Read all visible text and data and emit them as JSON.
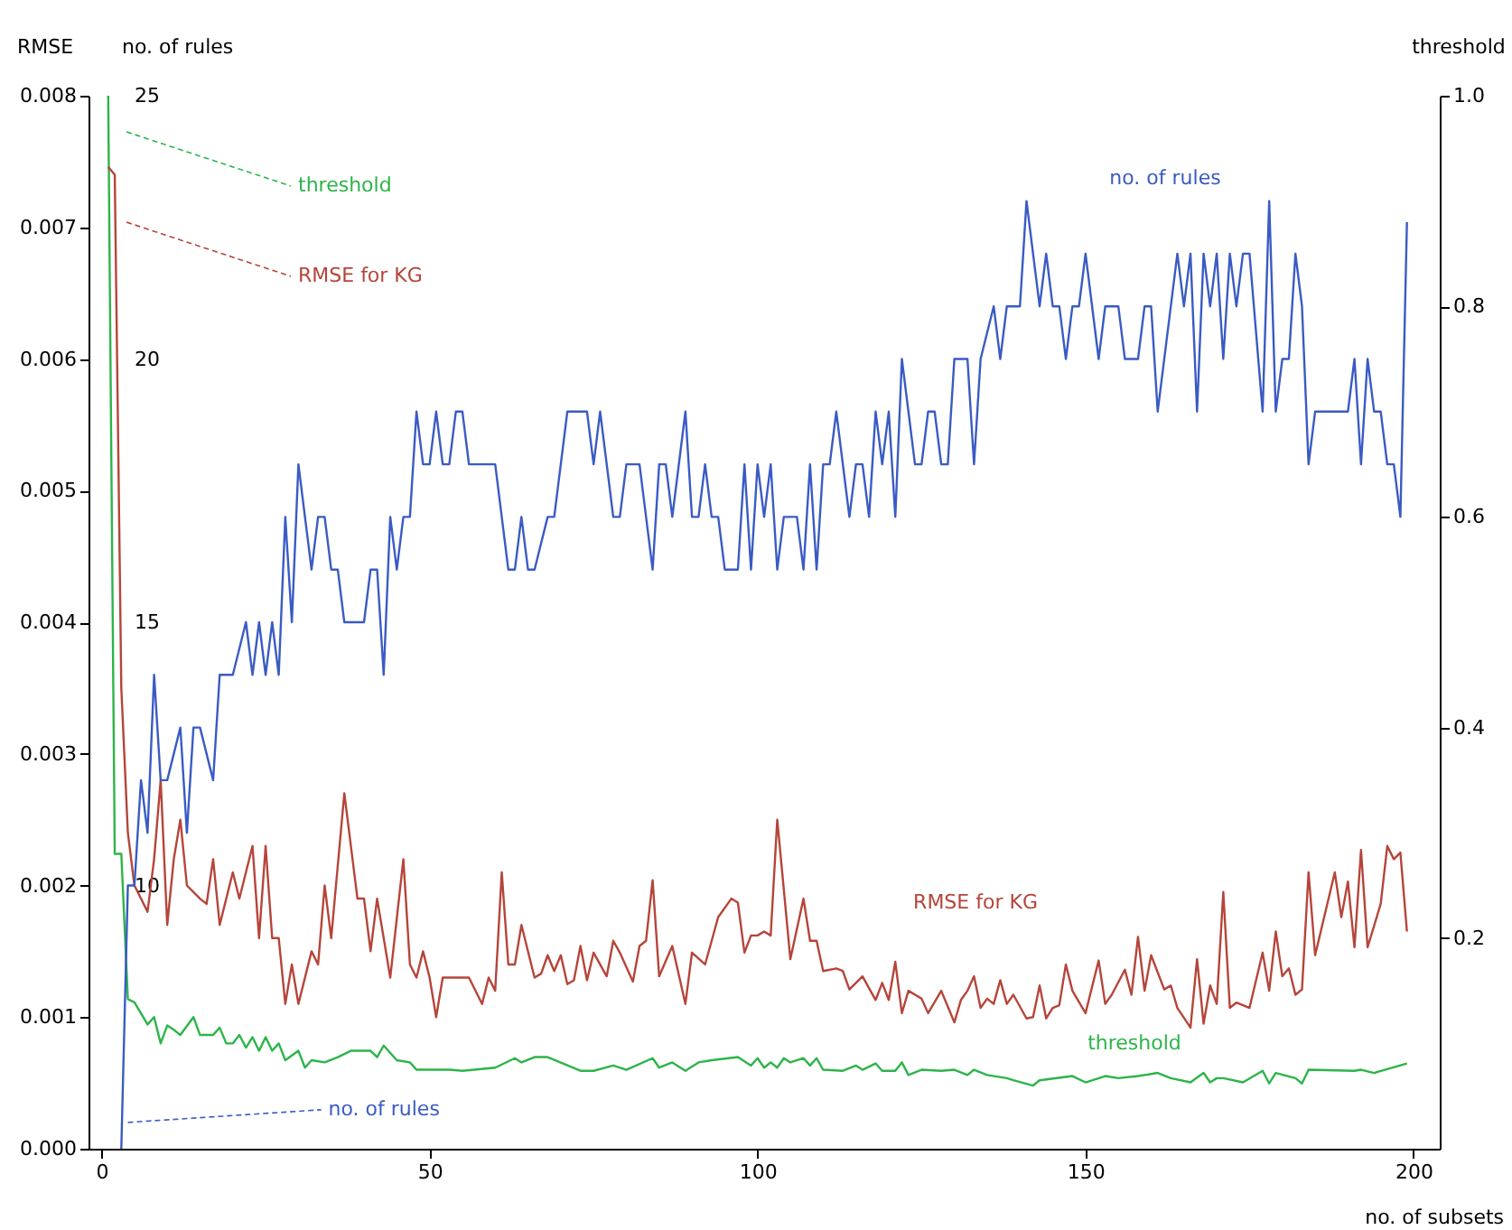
{
  "chart_data": {
    "type": "line",
    "xlabel": "no. of subsets",
    "ylabel": "RMSE",
    "y2label": "no. of rules",
    "y3label": "threshold",
    "xlim": [
      -2,
      204
    ],
    "xticks": [
      0,
      50,
      100,
      150,
      200
    ],
    "ylim": [
      0,
      0.008
    ],
    "yticks": [
      {
        "value": 0,
        "label": "0.000"
      },
      0.001,
      0.002,
      0.003,
      0.004,
      0.005,
      0.006,
      0.007,
      0.008
    ],
    "y2lim": [
      5,
      25
    ],
    "y2ticks": [
      10,
      15,
      20,
      25
    ],
    "y3lim": [
      0,
      1
    ],
    "y3ticks": [
      0.2,
      0.4,
      0.6,
      0.8,
      {
        "value": 1,
        "label": "1.0"
      }
    ],
    "line_style": "solid",
    "series": [
      {
        "name": "threshold",
        "axis": "y3",
        "color": "#2db44a",
        "x": [
          1,
          2,
          3,
          4,
          5,
          7,
          8,
          9,
          10,
          11,
          12,
          14,
          15,
          17,
          18,
          19,
          20,
          21,
          22,
          23,
          24,
          25,
          26,
          27,
          28,
          30,
          31,
          32,
          34,
          36,
          38,
          41,
          42,
          43,
          45,
          47,
          48,
          51,
          53,
          55,
          60,
          63,
          64,
          66,
          68,
          73,
          75,
          78,
          80,
          84,
          85,
          87,
          89,
          91,
          93,
          97,
          99,
          100,
          101,
          102,
          103,
          104,
          105,
          107,
          108,
          109,
          110,
          113,
          115,
          116,
          118,
          119,
          121,
          122,
          123,
          125,
          128,
          130,
          132,
          133,
          135,
          138,
          139,
          142,
          143,
          148,
          150,
          153,
          155,
          158,
          161,
          163,
          166,
          168,
          169,
          170,
          171,
          174,
          177,
          178,
          179,
          182,
          183,
          184,
          191,
          192,
          194,
          199
        ],
        "values": [
          1.0,
          0.28,
          0.28,
          0.142,
          0.139,
          0.118,
          0.125,
          0.1,
          0.117,
          0.113,
          0.108,
          0.125,
          0.108,
          0.108,
          0.115,
          0.1,
          0.1,
          0.108,
          0.096,
          0.106,
          0.093,
          0.106,
          0.093,
          0.1,
          0.084,
          0.093,
          0.077,
          0.084,
          0.082,
          0.087,
          0.093,
          0.093,
          0.087,
          0.098,
          0.084,
          0.082,
          0.075,
          0.075,
          0.075,
          0.074,
          0.077,
          0.086,
          0.082,
          0.087,
          0.087,
          0.074,
          0.074,
          0.079,
          0.075,
          0.086,
          0.077,
          0.082,
          0.074,
          0.082,
          0.084,
          0.087,
          0.079,
          0.086,
          0.077,
          0.082,
          0.077,
          0.086,
          0.082,
          0.086,
          0.079,
          0.086,
          0.075,
          0.074,
          0.079,
          0.075,
          0.081,
          0.074,
          0.074,
          0.082,
          0.07,
          0.075,
          0.074,
          0.075,
          0.07,
          0.075,
          0.07,
          0.067,
          0.065,
          0.06,
          0.065,
          0.069,
          0.063,
          0.069,
          0.067,
          0.069,
          0.072,
          0.067,
          0.063,
          0.072,
          0.063,
          0.067,
          0.067,
          0.063,
          0.074,
          0.062,
          0.072,
          0.067,
          0.062,
          0.075,
          0.074,
          0.075,
          0.072,
          0.081
        ]
      },
      {
        "name": "RMSE for KG",
        "color": "#b5453a",
        "x": [
          1,
          2,
          3,
          4,
          5,
          6,
          7,
          8,
          9,
          10,
          11,
          12,
          13,
          15,
          16,
          17,
          18,
          20,
          21,
          23,
          24,
          25,
          26,
          27,
          28,
          29,
          30,
          32,
          33,
          34,
          35,
          37,
          39,
          40,
          41,
          42,
          44,
          46,
          47,
          48,
          49,
          50,
          51,
          52,
          53,
          56,
          58,
          59,
          60,
          61,
          62,
          63,
          64,
          66,
          67,
          68,
          69,
          70,
          71,
          72,
          73,
          74,
          75,
          77,
          78,
          79,
          81,
          82,
          83,
          84,
          85,
          87,
          89,
          90,
          92,
          94,
          96,
          97,
          98,
          99,
          100,
          101,
          102,
          103,
          105,
          107,
          108,
          109,
          110,
          112,
          113,
          114,
          116,
          118,
          119,
          120,
          121,
          122,
          123,
          125,
          126,
          128,
          130,
          131,
          132,
          133,
          134,
          135,
          136,
          137,
          138,
          139,
          141,
          142,
          143,
          144,
          145,
          146,
          147,
          148,
          150,
          152,
          153,
          154,
          156,
          157,
          158,
          159,
          160,
          162,
          163,
          164,
          166,
          167,
          168,
          169,
          170,
          171,
          172,
          173,
          175,
          177,
          178,
          179,
          180,
          181,
          182,
          183,
          184,
          185,
          188,
          189,
          190,
          191,
          192,
          193,
          195,
          196,
          197,
          198,
          199
        ],
        "values": [
          0.00746,
          0.0074,
          0.0035,
          0.0024,
          0.002,
          0.0019,
          0.0018,
          0.0022,
          0.0028,
          0.0017,
          0.0022,
          0.0025,
          0.002,
          0.0019,
          0.00186,
          0.0022,
          0.0017,
          0.0021,
          0.0019,
          0.0023,
          0.0016,
          0.0023,
          0.0016,
          0.0016,
          0.0011,
          0.0014,
          0.0011,
          0.0015,
          0.0014,
          0.002,
          0.0016,
          0.0027,
          0.0019,
          0.0019,
          0.0015,
          0.0019,
          0.0013,
          0.0022,
          0.0014,
          0.0013,
          0.0015,
          0.0013,
          0.001,
          0.0013,
          0.0013,
          0.0013,
          0.0011,
          0.0013,
          0.0012,
          0.0021,
          0.0014,
          0.0014,
          0.0017,
          0.0013,
          0.00133,
          0.00147,
          0.00135,
          0.00147,
          0.00125,
          0.00128,
          0.00154,
          0.00128,
          0.00149,
          0.00131,
          0.00158,
          0.00149,
          0.00127,
          0.00154,
          0.00158,
          0.00204,
          0.00131,
          0.00154,
          0.0011,
          0.00149,
          0.0014,
          0.00176,
          0.0019,
          0.00187,
          0.00149,
          0.00162,
          0.00162,
          0.00165,
          0.00162,
          0.0025,
          0.00144,
          0.0019,
          0.00158,
          0.00158,
          0.00135,
          0.00137,
          0.00135,
          0.00121,
          0.00131,
          0.00113,
          0.00126,
          0.00113,
          0.00142,
          0.00103,
          0.0012,
          0.00114,
          0.00103,
          0.0012,
          0.00096,
          0.00113,
          0.0012,
          0.00131,
          0.00107,
          0.00114,
          0.0011,
          0.00128,
          0.0011,
          0.00117,
          0.00099,
          0.001,
          0.00124,
          0.00099,
          0.00107,
          0.00109,
          0.0014,
          0.0012,
          0.00103,
          0.00143,
          0.0011,
          0.00117,
          0.00136,
          0.00117,
          0.00161,
          0.0012,
          0.00147,
          0.00121,
          0.00124,
          0.00107,
          0.00092,
          0.00144,
          0.00095,
          0.00124,
          0.0011,
          0.00195,
          0.00107,
          0.00111,
          0.00107,
          0.00149,
          0.0012,
          0.00165,
          0.00131,
          0.00137,
          0.00117,
          0.00121,
          0.0021,
          0.00147,
          0.0021,
          0.00176,
          0.00203,
          0.00153,
          0.00227,
          0.00153,
          0.00186,
          0.0023,
          0.0022,
          0.00225,
          0.00165
        ]
      },
      {
        "name": "no. of rules",
        "axis": "y2",
        "color": "#3a5bc4",
        "x": [
          3,
          4,
          5,
          6,
          7,
          8,
          9,
          10,
          12,
          13,
          14,
          15,
          17,
          18,
          20,
          22,
          23,
          24,
          25,
          26,
          27,
          28,
          29,
          30,
          32,
          33,
          34,
          35,
          36,
          37,
          40,
          41,
          42,
          43,
          44,
          45,
          46,
          47,
          48,
          49,
          50,
          51,
          52,
          53,
          54,
          55,
          56,
          60,
          62,
          63,
          64,
          65,
          66,
          68,
          69,
          71,
          74,
          75,
          76,
          78,
          79,
          80,
          82,
          84,
          85,
          86,
          87,
          89,
          90,
          91,
          92,
          93,
          94,
          95,
          97,
          98,
          99,
          100,
          101,
          102,
          103,
          104,
          106,
          107,
          108,
          109,
          110,
          111,
          112,
          114,
          115,
          116,
          117,
          118,
          119,
          120,
          121,
          122,
          124,
          125,
          126,
          127,
          128,
          129,
          130,
          132,
          133,
          134,
          136,
          137,
          138,
          140,
          141,
          143,
          144,
          145,
          146,
          147,
          148,
          149,
          150,
          152,
          153,
          155,
          156,
          158,
          159,
          160,
          161,
          164,
          165,
          166,
          167,
          168,
          169,
          170,
          171,
          172,
          173,
          174,
          175,
          177,
          178,
          179,
          180,
          181,
          182,
          183,
          184,
          185,
          190,
          191,
          192,
          193,
          194,
          195,
          196,
          197,
          198,
          199
        ],
        "values": [
          5,
          10,
          10,
          12,
          11,
          14,
          12,
          12,
          13,
          11,
          13,
          13,
          12,
          14,
          14,
          15,
          14,
          15,
          14,
          15,
          14,
          17,
          15,
          18,
          16,
          17,
          17,
          16,
          16,
          15,
          15,
          16,
          16,
          14,
          17,
          16,
          17,
          17,
          19,
          18,
          18,
          19,
          18,
          18,
          19,
          19,
          18,
          18,
          16,
          16,
          17,
          16,
          16,
          17,
          17,
          19,
          19,
          18,
          19,
          17,
          17,
          18,
          18,
          16,
          18,
          18,
          17,
          19,
          17,
          17,
          18,
          17,
          17,
          16,
          16,
          18,
          16,
          18,
          17,
          18,
          16,
          17,
          17,
          16,
          18,
          16,
          18,
          18,
          19,
          17,
          18,
          18,
          17,
          19,
          18,
          19,
          17,
          20,
          18,
          18,
          19,
          19,
          18,
          18,
          20,
          20,
          18,
          20,
          21,
          20,
          21,
          21,
          23,
          21,
          22,
          21,
          21,
          20,
          21,
          21,
          22,
          20,
          21,
          21,
          20,
          20,
          21,
          21,
          19,
          22,
          21,
          22,
          19,
          22,
          21,
          22,
          20,
          22,
          21,
          22,
          22,
          19,
          23,
          19,
          20,
          20,
          22,
          21,
          18,
          19,
          19,
          20,
          18,
          20,
          19,
          19,
          18,
          18,
          17,
          22.6
        ]
      }
    ],
    "annotations": [
      "threshold",
      "RMSE for KG",
      {
        "text": "no. of rules",
        "x": 4,
        "y": 0.0002
      }
    ]
  }
}
